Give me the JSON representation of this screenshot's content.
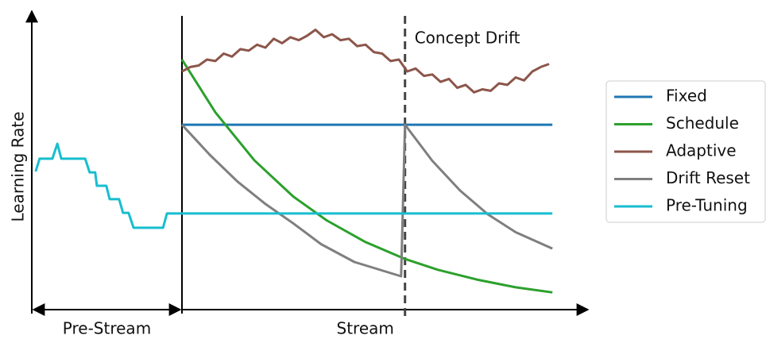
{
  "chart_data": {
    "type": "line",
    "y_label": "Learning Rate",
    "xlim": [
      0,
      100
    ],
    "ylim": [
      0,
      100
    ],
    "stream_start_x": 27,
    "drift_x": 67.1,
    "drift_label": "Concept Drift",
    "pre_stream_label": "Pre-Stream",
    "stream_label": "Stream",
    "legend": "right",
    "series": [
      {
        "name": "Fixed",
        "color": "#1f77b4",
        "x": [
          27,
          93.6
        ],
        "values": [
          62.1,
          62.1
        ]
      },
      {
        "name": "Schedule",
        "color": "#2ca02c",
        "x": [
          27,
          33,
          40,
          47,
          53,
          60,
          67,
          73,
          80,
          87,
          93.6
        ],
        "values": [
          84,
          66.3,
          50.2,
          38,
          30,
          22.7,
          17.1,
          13.4,
          10.1,
          7.5,
          5.8
        ]
      },
      {
        "name": "Adaptive",
        "color": "#8c564b",
        "x": [
          27,
          28.5,
          30,
          31.5,
          33,
          34.5,
          36,
          37.5,
          39,
          40.5,
          42,
          43.5,
          45,
          46.5,
          48,
          49.5,
          51,
          52.5,
          54,
          55.5,
          57,
          58.5,
          60,
          61.5,
          63,
          64.5,
          66,
          67.5,
          69,
          70.5,
          72,
          73.5,
          75,
          76.5,
          78,
          79.5,
          81,
          82.5,
          84,
          85.5,
          87,
          88.5,
          90,
          91.5,
          93
        ],
        "values": [
          80,
          81.5,
          82,
          84,
          83.5,
          86,
          85,
          87.5,
          87,
          89,
          88,
          91,
          89.5,
          91.5,
          90.5,
          92,
          94,
          91.5,
          92.5,
          90.5,
          91,
          88.5,
          89,
          86.5,
          86,
          83.5,
          84,
          80,
          81,
          78.5,
          79,
          76.5,
          77.5,
          74.5,
          75.5,
          73,
          74,
          73.5,
          76,
          75.5,
          78,
          77,
          80,
          81.5,
          82.5
        ]
      },
      {
        "name": "Drift Reset",
        "color": "#7f7f7f",
        "x": [
          27,
          32,
          37,
          42,
          47,
          52,
          58,
          66.4,
          67.1,
          72,
          77,
          82,
          87,
          93.6
        ],
        "values": [
          62.1,
          52,
          43,
          35.5,
          29,
          22,
          16,
          11.2,
          62.1,
          50,
          40,
          32,
          26,
          20.5
        ]
      },
      {
        "name": "Pre-Tuning",
        "color": "#17becf",
        "x": [
          0.7,
          1.4,
          3.7,
          4.6,
          5.3,
          9.6,
          10.4,
          11.4,
          11.7,
          13.4,
          14,
          15.7,
          16.4,
          17.4,
          18.3,
          23.6,
          24.3,
          27,
          93.6
        ],
        "values": [
          46.4,
          50.7,
          50.7,
          55.7,
          50.7,
          50.7,
          46.1,
          46.1,
          41.6,
          41.6,
          37.1,
          37.1,
          32.5,
          32.5,
          27.5,
          27.5,
          32.3,
          32.3,
          32.3
        ]
      }
    ]
  }
}
